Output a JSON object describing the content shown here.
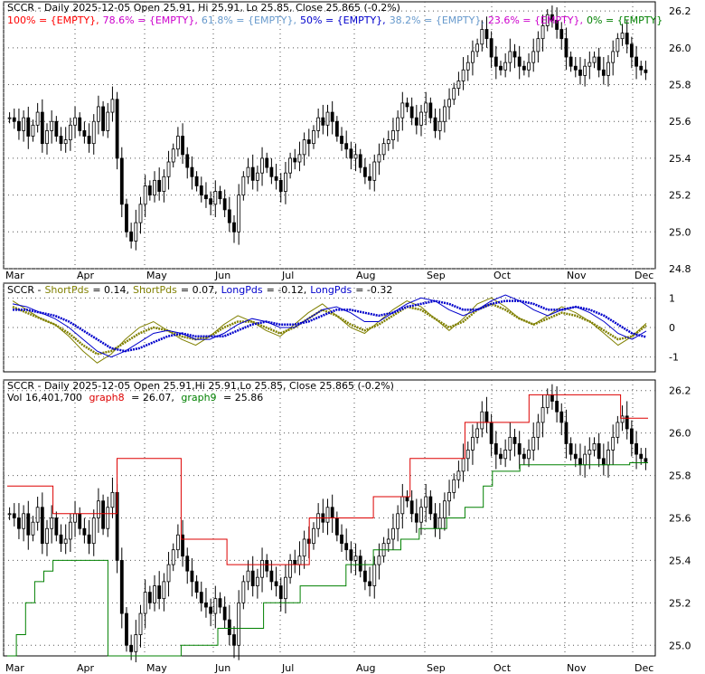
{
  "chart_data": [
    {
      "type": "candlestick",
      "panel": "price",
      "title_prefix": "SCCR - Daily 2025-12-05 Open 25.91, Hi 25.91, Lo 25.85, Close 25.865 (-0.2%)",
      "fib_legend": [
        {
          "text": "100% = {EMPTY},",
          "color": "#ff0000"
        },
        {
          "text": "78.6% = {EMPTY},",
          "color": "#cc00cc"
        },
        {
          "text": "61.8% = {EMPTY},",
          "color": "#6699cc"
        },
        {
          "text": "50% = {EMPTY},",
          "color": "#0000cc"
        },
        {
          "text": "38.2% = {EMPTY},",
          "color": "#6699cc"
        },
        {
          "text": "23.6% = {EMPTY},",
          "color": "#cc00cc"
        },
        {
          "text": "0% = {EMPTY}",
          "color": "#008000"
        }
      ],
      "x_months": [
        "Mar",
        "Apr",
        "May",
        "Jun",
        "Jul",
        "Aug",
        "Sep",
        "Oct",
        "Nov",
        "Dec"
      ],
      "y_ticks": [
        "26.2",
        "26.0",
        "25.8",
        "25.6",
        "25.4",
        "25.2",
        "25.0",
        "24.8"
      ],
      "ylim": [
        24.8,
        26.25
      ],
      "grid": true,
      "close_series": [
        25.62,
        25.6,
        25.55,
        25.62,
        25.52,
        25.58,
        25.65,
        25.48,
        25.55,
        25.6,
        25.52,
        25.48,
        25.5,
        25.58,
        25.62,
        25.55,
        25.52,
        25.48,
        25.6,
        25.68,
        25.55,
        25.65,
        25.72,
        25.4,
        25.15,
        25.0,
        24.95,
        25.05,
        25.15,
        25.25,
        25.2,
        25.28,
        25.22,
        25.3,
        25.38,
        25.45,
        25.52,
        25.42,
        25.35,
        25.3,
        25.25,
        25.2,
        25.18,
        25.15,
        25.22,
        25.18,
        25.12,
        25.05,
        25.0,
        25.2,
        25.3,
        25.35,
        25.28,
        25.32,
        25.4,
        25.35,
        25.3,
        25.28,
        25.22,
        25.32,
        25.4,
        25.38,
        25.42,
        25.5,
        25.48,
        25.55,
        25.62,
        25.58,
        25.65,
        25.6,
        25.52,
        25.48,
        25.45,
        25.4,
        25.42,
        25.35,
        25.3,
        25.28,
        25.38,
        25.42,
        25.48,
        25.5,
        25.55,
        25.62,
        25.7,
        25.68,
        25.62,
        25.58,
        25.65,
        25.7,
        25.62,
        25.55,
        25.6,
        25.68,
        25.72,
        25.78,
        25.82,
        25.88,
        25.92,
        25.98,
        26.02,
        26.1,
        26.05,
        25.95,
        25.9,
        25.88,
        25.92,
        25.98,
        25.95,
        25.9,
        25.88,
        25.92,
        25.98,
        26.05,
        26.12,
        26.18,
        26.15,
        26.1,
        26.05,
        25.95,
        25.9,
        25.88,
        25.85,
        25.9,
        25.92,
        25.95,
        25.88,
        25.85,
        25.92,
        25.98,
        26.05,
        26.08,
        26.02,
        25.95,
        25.9,
        25.88,
        25.865
      ]
    },
    {
      "type": "line",
      "panel": "oscillator",
      "legend": [
        {
          "text": "SCCR -",
          "color": "#000000"
        },
        {
          "text": "ShortPds",
          "color": "#808000"
        },
        {
          "text": "= 0.14,",
          "color": "#000000"
        },
        {
          "text": "ShortPds",
          "color": "#808000"
        },
        {
          "text": "= 0.07,",
          "color": "#000000"
        },
        {
          "text": "LongPds",
          "color": "#0000cc"
        },
        {
          "text": "= -0.12,",
          "color": "#000000"
        },
        {
          "text": "LongPds",
          "color": "#0000cc"
        },
        {
          "text": "= -0.32",
          "color": "#000000"
        }
      ],
      "y_ticks": [
        "1",
        "0",
        "-1"
      ],
      "ylim": [
        -1.5,
        1.5
      ],
      "series": [
        {
          "name": "ShortPds",
          "color": "#808000",
          "values": [
            0.9,
            0.6,
            0.3,
            0.1,
            -0.3,
            -0.8,
            -1.2,
            -0.9,
            -0.4,
            0.0,
            0.2,
            -0.1,
            -0.4,
            -0.6,
            -0.3,
            0.1,
            0.4,
            0.2,
            -0.1,
            -0.3,
            0.1,
            0.5,
            0.8,
            0.4,
            0.0,
            -0.2,
            0.2,
            0.6,
            0.9,
            0.7,
            0.3,
            -0.1,
            0.3,
            0.8,
            1.0,
            0.7,
            0.3,
            0.1,
            0.4,
            0.7,
            0.5,
            0.2,
            -0.2,
            -0.6,
            -0.3,
            0.14
          ]
        },
        {
          "name": "ShortPds",
          "color": "#808000",
          "values": [
            0.7,
            0.5,
            0.3,
            0.1,
            -0.2,
            -0.6,
            -0.9,
            -0.8,
            -0.5,
            -0.2,
            0.0,
            -0.1,
            -0.3,
            -0.4,
            -0.3,
            0.0,
            0.2,
            0.2,
            0.0,
            -0.2,
            0.0,
            0.3,
            0.6,
            0.4,
            0.1,
            -0.1,
            0.1,
            0.4,
            0.7,
            0.6,
            0.3,
            0.0,
            0.2,
            0.6,
            0.8,
            0.6,
            0.3,
            0.1,
            0.3,
            0.5,
            0.4,
            0.2,
            -0.1,
            -0.4,
            -0.3,
            0.07
          ]
        },
        {
          "name": "LongPds",
          "color": "#0000cc",
          "values": [
            0.8,
            0.7,
            0.5,
            0.3,
            0.0,
            -0.4,
            -0.8,
            -1.0,
            -0.8,
            -0.5,
            -0.2,
            -0.1,
            -0.2,
            -0.4,
            -0.4,
            -0.2,
            0.1,
            0.3,
            0.2,
            0.0,
            0.0,
            0.3,
            0.6,
            0.7,
            0.5,
            0.2,
            0.2,
            0.5,
            0.8,
            1.0,
            0.9,
            0.6,
            0.4,
            0.6,
            0.9,
            1.1,
            0.9,
            0.6,
            0.4,
            0.6,
            0.7,
            0.5,
            0.2,
            -0.2,
            -0.4,
            -0.12
          ]
        },
        {
          "name": "LongPds",
          "color": "#0000cc",
          "values": [
            0.6,
            0.6,
            0.5,
            0.4,
            0.2,
            -0.1,
            -0.4,
            -0.7,
            -0.8,
            -0.7,
            -0.5,
            -0.3,
            -0.2,
            -0.3,
            -0.3,
            -0.3,
            -0.1,
            0.1,
            0.2,
            0.1,
            0.1,
            0.2,
            0.4,
            0.6,
            0.6,
            0.5,
            0.4,
            0.5,
            0.7,
            0.8,
            0.9,
            0.8,
            0.6,
            0.6,
            0.8,
            0.9,
            0.9,
            0.8,
            0.6,
            0.6,
            0.7,
            0.6,
            0.4,
            0.1,
            -0.2,
            -0.32
          ]
        }
      ]
    },
    {
      "type": "candlestick",
      "panel": "trailing-stop",
      "title": "SCCR - Daily 2025-12-05 Open 25.91,Hi 25.91,Lo 25.85, Close 25.865 (-0.2%)",
      "vol_label": "Vol 16,401,700",
      "graph8_label": "graph8",
      "graph8_value": "= 26.07,",
      "graph9_label": "graph9",
      "graph9_value": "= 25.86",
      "graph8_color": "#dd0000",
      "graph9_color": "#008000",
      "y_ticks": [
        "26.2",
        "26.0",
        "25.8",
        "25.6",
        "25.4",
        "25.2",
        "25.0"
      ],
      "ylim": [
        24.95,
        26.25
      ],
      "x_months": [
        "Mar",
        "Apr",
        "May",
        "Jun",
        "Jul",
        "Aug",
        "Sep",
        "Oct",
        "Nov",
        "Dec"
      ],
      "graph8": [
        25.75,
        25.75,
        25.75,
        25.75,
        25.75,
        25.62,
        25.62,
        25.62,
        25.62,
        25.62,
        25.62,
        25.62,
        25.88,
        25.88,
        25.88,
        25.88,
        25.88,
        25.88,
        25.88,
        25.5,
        25.5,
        25.5,
        25.5,
        25.5,
        25.38,
        25.38,
        25.38,
        25.38,
        25.38,
        25.38,
        25.38,
        25.38,
        25.38,
        25.6,
        25.6,
        25.6,
        25.6,
        25.6,
        25.6,
        25.6,
        25.7,
        25.7,
        25.7,
        25.7,
        25.88,
        25.88,
        25.88,
        25.88,
        25.88,
        25.88,
        26.05,
        26.05,
        26.05,
        26.05,
        26.05,
        26.05,
        26.05,
        26.18,
        26.18,
        26.18,
        26.18,
        26.18,
        26.18,
        26.18,
        26.18,
        26.18,
        26.18,
        26.07,
        26.07,
        26.07
      ],
      "graph9": [
        24.95,
        25.05,
        25.2,
        25.3,
        25.35,
        25.4,
        25.4,
        25.4,
        25.4,
        25.4,
        25.4,
        24.95,
        24.95,
        24.95,
        24.95,
        24.95,
        24.95,
        24.95,
        24.95,
        25.0,
        25.0,
        25.0,
        25.0,
        25.08,
        25.08,
        25.08,
        25.08,
        25.08,
        25.2,
        25.2,
        25.2,
        25.2,
        25.28,
        25.28,
        25.28,
        25.28,
        25.28,
        25.38,
        25.38,
        25.38,
        25.45,
        25.45,
        25.45,
        25.5,
        25.5,
        25.55,
        25.55,
        25.55,
        25.6,
        25.6,
        25.65,
        25.65,
        25.75,
        25.82,
        25.82,
        25.82,
        25.85,
        25.85,
        25.85,
        25.85,
        25.85,
        25.85,
        25.85,
        25.85,
        25.85,
        25.85,
        25.85,
        25.85,
        25.86,
        25.86
      ]
    }
  ]
}
